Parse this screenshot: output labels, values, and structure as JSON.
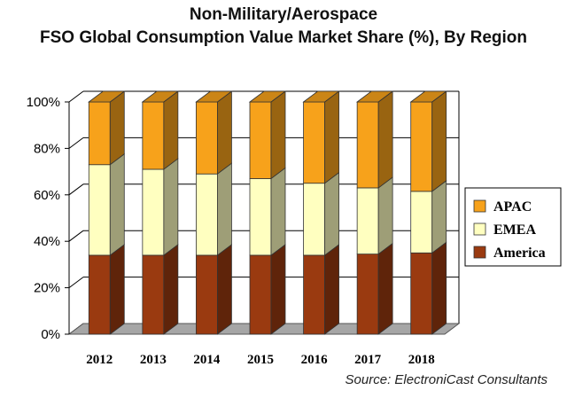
{
  "title_line1": "Non-Military/Aerospace",
  "title_line2": "FSO Global Consumption Value Market Share (%), By Region",
  "source": "Source: ElectroniCast Consultants",
  "colors": {
    "America": "#9a3a10",
    "EMEA": "#ffffc0",
    "APAC": "#f7a21b",
    "floor": "#a6a6a6"
  },
  "chart_data": {
    "type": "bar",
    "stacked": true,
    "categories": [
      "2012",
      "2013",
      "2014",
      "2015",
      "2016",
      "2017",
      "2018"
    ],
    "series": [
      {
        "name": "America",
        "values": [
          34,
          34,
          34,
          34,
          34,
          34.5,
          35
        ]
      },
      {
        "name": "EMEA",
        "values": [
          39,
          37,
          35,
          33,
          31,
          28.5,
          26.5
        ]
      },
      {
        "name": "APAC",
        "values": [
          27,
          29,
          31,
          33,
          35,
          37,
          38.5
        ]
      }
    ],
    "yticks": [
      "0%",
      "20%",
      "40%",
      "60%",
      "80%",
      "100%"
    ],
    "ylim": [
      0,
      100
    ],
    "grid": true,
    "legend": {
      "position": "right",
      "entries": [
        "APAC",
        "EMEA",
        "America"
      ]
    }
  }
}
